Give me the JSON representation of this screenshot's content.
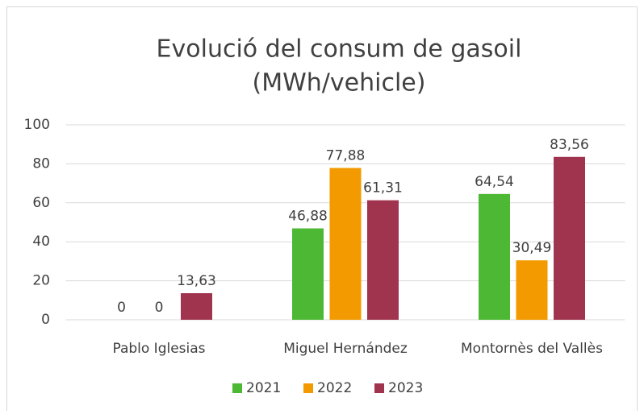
{
  "chart_data": {
    "type": "bar",
    "title": [
      "Evolució del consum de gasoil",
      "(MWh/vehicle)"
    ],
    "categories": [
      "Pablo Iglesias",
      "Miguel Hernández",
      "Montornès del Vallès"
    ],
    "series": [
      {
        "name": "2021",
        "color": "#4db833",
        "values": [
          0,
          46.88,
          64.54
        ],
        "value_labels": [
          "0",
          "46,88",
          "64,54"
        ]
      },
      {
        "name": "2022",
        "color": "#f29a00",
        "values": [
          0,
          77.88,
          30.49
        ],
        "value_labels": [
          "0",
          "77,88",
          "30,49"
        ]
      },
      {
        "name": "2023",
        "color": "#a0344f",
        "values": [
          13.63,
          61.31,
          83.56
        ],
        "value_labels": [
          "13,63",
          "61,31",
          "83,56"
        ]
      }
    ],
    "ylim": [
      0,
      100
    ],
    "yticks": [
      0,
      20,
      40,
      60,
      80,
      100
    ],
    "grid": true,
    "legend": "bottom"
  }
}
